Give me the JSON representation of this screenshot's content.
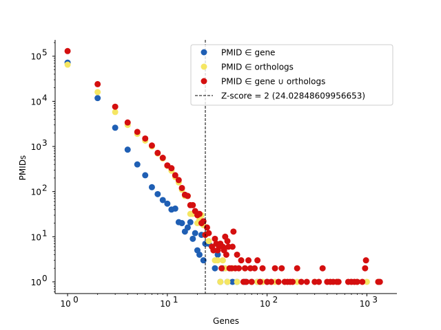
{
  "chart_data": {
    "type": "scatter",
    "xlabel": "Genes",
    "ylabel": "PMIDs",
    "xscale": "log",
    "yscale": "log",
    "xlim": [
      0.75,
      2000
    ],
    "ylim": [
      0.55,
      230000
    ],
    "grid": false,
    "legend_position": "top-right",
    "x_ticks": [
      1,
      10,
      100,
      1000
    ],
    "x_tick_labels": [
      "10",
      "10",
      "10",
      "10"
    ],
    "x_tick_exps": [
      "0",
      "1",
      "2",
      "3"
    ],
    "y_ticks": [
      1,
      10,
      100,
      1000,
      10000,
      100000
    ],
    "y_tick_labels": [
      "10",
      "10",
      "10",
      "10",
      "10",
      "10"
    ],
    "y_tick_exps": [
      "0",
      "1",
      "2",
      "3",
      "4",
      "5"
    ],
    "series": [
      {
        "name": "PMID ∈ gene",
        "color": "#1f5fb4",
        "points": [
          [
            1,
            72000
          ],
          [
            2,
            11800
          ],
          [
            3,
            2600
          ],
          [
            4,
            850
          ],
          [
            5,
            400
          ],
          [
            6,
            230
          ],
          [
            7,
            125
          ],
          [
            8,
            88
          ],
          [
            9,
            65
          ],
          [
            10,
            54
          ],
          [
            11,
            40
          ],
          [
            12,
            42
          ],
          [
            13,
            21
          ],
          [
            14,
            20
          ],
          [
            15,
            13
          ],
          [
            16,
            16
          ],
          [
            17,
            21
          ],
          [
            18,
            9
          ],
          [
            19,
            12
          ],
          [
            20,
            5
          ],
          [
            21,
            4
          ],
          [
            22,
            11
          ],
          [
            23,
            3
          ],
          [
            24,
            7
          ],
          [
            26,
            7
          ],
          [
            28,
            6
          ],
          [
            30,
            2
          ],
          [
            32,
            4
          ],
          [
            34,
            1
          ],
          [
            36,
            2
          ],
          [
            40,
            1
          ],
          [
            45,
            1
          ],
          [
            50,
            1
          ],
          [
            60,
            1
          ],
          [
            70,
            1
          ],
          [
            80,
            1
          ],
          [
            100,
            1
          ]
        ]
      },
      {
        "name": "PMID ∈ orthologs",
        "color": "#f5e663",
        "points": [
          [
            1,
            65000
          ],
          [
            2,
            16000
          ],
          [
            3,
            5800
          ],
          [
            4,
            3000
          ],
          [
            5,
            1900
          ],
          [
            6,
            1350
          ],
          [
            7,
            1000
          ],
          [
            8,
            700
          ],
          [
            9,
            540
          ],
          [
            10,
            370
          ],
          [
            11,
            290
          ],
          [
            12,
            210
          ],
          [
            13,
            160
          ],
          [
            14,
            110
          ],
          [
            15,
            80
          ],
          [
            16,
            80
          ],
          [
            17,
            32
          ],
          [
            18,
            32
          ],
          [
            19,
            35
          ],
          [
            20,
            20
          ],
          [
            21,
            24
          ],
          [
            22,
            30
          ],
          [
            23,
            18
          ],
          [
            24,
            11
          ],
          [
            26,
            8
          ],
          [
            28,
            6
          ],
          [
            30,
            3
          ],
          [
            32,
            3
          ],
          [
            34,
            1
          ],
          [
            36,
            3
          ],
          [
            38,
            2
          ],
          [
            40,
            1
          ],
          [
            45,
            2
          ],
          [
            50,
            1
          ],
          [
            55,
            3
          ],
          [
            60,
            2
          ],
          [
            70,
            1
          ],
          [
            80,
            1
          ],
          [
            90,
            1
          ],
          [
            120,
            1
          ],
          [
            150,
            1
          ],
          [
            200,
            1
          ],
          [
            300,
            1
          ],
          [
            500,
            1
          ],
          [
            800,
            1
          ],
          [
            1000,
            1
          ],
          [
            1300,
            1
          ]
        ]
      },
      {
        "name": "PMID ∈ gene ∪ orthologs",
        "color": "#d40f0f",
        "points": [
          [
            1,
            130000
          ],
          [
            2,
            24000
          ],
          [
            3,
            7600
          ],
          [
            4,
            3400
          ],
          [
            5,
            2100
          ],
          [
            6,
            1500
          ],
          [
            7,
            1050
          ],
          [
            8,
            720
          ],
          [
            9,
            560
          ],
          [
            10,
            380
          ],
          [
            11,
            330
          ],
          [
            12,
            230
          ],
          [
            13,
            180
          ],
          [
            14,
            120
          ],
          [
            15,
            85
          ],
          [
            16,
            80
          ],
          [
            17,
            50
          ],
          [
            18,
            50
          ],
          [
            19,
            37
          ],
          [
            20,
            30
          ],
          [
            21,
            32
          ],
          [
            22,
            20
          ],
          [
            23,
            22
          ],
          [
            24,
            11
          ],
          [
            25,
            16
          ],
          [
            26,
            12
          ],
          [
            28,
            6
          ],
          [
            29,
            5
          ],
          [
            30,
            9
          ],
          [
            31,
            7
          ],
          [
            32,
            5
          ],
          [
            33,
            6
          ],
          [
            34,
            7
          ],
          [
            35,
            2
          ],
          [
            36,
            6
          ],
          [
            37,
            5
          ],
          [
            38,
            10
          ],
          [
            39,
            4
          ],
          [
            40,
            8
          ],
          [
            41,
            6
          ],
          [
            42,
            2
          ],
          [
            44,
            2
          ],
          [
            45,
            6
          ],
          [
            46,
            13
          ],
          [
            48,
            2
          ],
          [
            50,
            4
          ],
          [
            52,
            2
          ],
          [
            55,
            3
          ],
          [
            58,
            1
          ],
          [
            60,
            2
          ],
          [
            62,
            1
          ],
          [
            65,
            3
          ],
          [
            68,
            2
          ],
          [
            70,
            1
          ],
          [
            75,
            2
          ],
          [
            80,
            3
          ],
          [
            85,
            1
          ],
          [
            90,
            2
          ],
          [
            100,
            1
          ],
          [
            110,
            1
          ],
          [
            120,
            2
          ],
          [
            130,
            1
          ],
          [
            140,
            2
          ],
          [
            150,
            1
          ],
          [
            160,
            1
          ],
          [
            170,
            1
          ],
          [
            180,
            1
          ],
          [
            200,
            2
          ],
          [
            220,
            1
          ],
          [
            250,
            1
          ],
          [
            300,
            1
          ],
          [
            330,
            1
          ],
          [
            360,
            2
          ],
          [
            400,
            1
          ],
          [
            430,
            1
          ],
          [
            460,
            1
          ],
          [
            500,
            1
          ],
          [
            520,
            1
          ],
          [
            650,
            1
          ],
          [
            700,
            1
          ],
          [
            750,
            1
          ],
          [
            800,
            1
          ],
          [
            900,
            1
          ],
          [
            960,
            2
          ],
          [
            980,
            3
          ],
          [
            1300,
            1
          ],
          [
            1350,
            1
          ]
        ]
      }
    ],
    "reference_line": {
      "label": "Z-score = 2 (24.02848609956653)",
      "x": 24.02848609956653,
      "color": "#000000",
      "style": "dashed"
    }
  }
}
